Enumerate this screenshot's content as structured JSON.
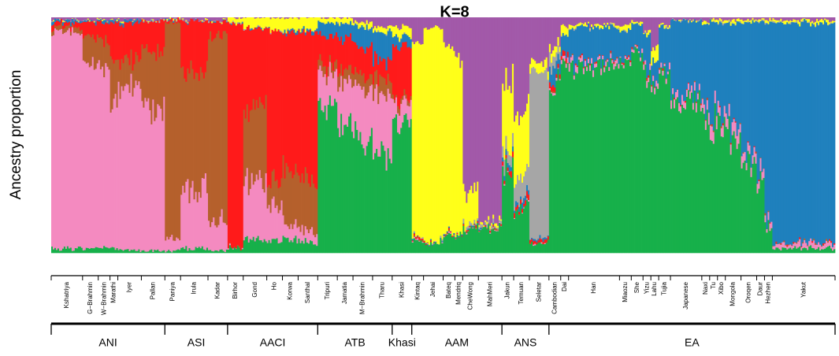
{
  "chart_data": {
    "type": "stacked-bar",
    "title": "K=8",
    "ylabel": "Ancestry proportion",
    "ylim": [
      0,
      1
    ],
    "components": [
      {
        "name": "pink",
        "color": "#f48ac0"
      },
      {
        "name": "brown",
        "color": "#b5602c"
      },
      {
        "name": "red",
        "color": "#ff1a1a"
      },
      {
        "name": "green",
        "color": "#17b04a"
      },
      {
        "name": "blue",
        "color": "#1f80bd"
      },
      {
        "name": "purple",
        "color": "#a259a9"
      },
      {
        "name": "yellow",
        "color": "#ffff19"
      },
      {
        "name": "gray",
        "color": "#a6a6a6"
      }
    ],
    "populations": [
      {
        "name": "Kshatriya",
        "start": 0.0,
        "end": 0.04,
        "profile": [
          0.92,
          0.02,
          0.02,
          0.02,
          0.01,
          0.01,
          0,
          0
        ]
      },
      {
        "name": "G−Brahmin",
        "start": 0.04,
        "end": 0.06,
        "profile": [
          0.78,
          0.12,
          0.06,
          0.02,
          0.01,
          0.01,
          0,
          0
        ]
      },
      {
        "name": "W−Brahmin",
        "start": 0.06,
        "end": 0.075,
        "profile": [
          0.76,
          0.12,
          0.08,
          0.02,
          0.01,
          0.01,
          0,
          0
        ]
      },
      {
        "name": "Marathi",
        "start": 0.075,
        "end": 0.085,
        "profile": [
          0.62,
          0.18,
          0.16,
          0.02,
          0.01,
          0.01,
          0,
          0
        ]
      },
      {
        "name": "Iyer",
        "start": 0.085,
        "end": 0.115,
        "profile": [
          0.7,
          0.12,
          0.15,
          0.01,
          0.01,
          0.01,
          0,
          0
        ]
      },
      {
        "name": "Pallan",
        "start": 0.115,
        "end": 0.145,
        "profile": [
          0.6,
          0.25,
          0.13,
          0.01,
          0,
          0.01,
          0,
          0
        ]
      },
      {
        "name": "Paniya",
        "start": 0.145,
        "end": 0.165,
        "profile": [
          0.05,
          0.93,
          0.01,
          0.01,
          0,
          0,
          0,
          0
        ]
      },
      {
        "name": "Irula",
        "start": 0.165,
        "end": 0.2,
        "profile": [
          0.25,
          0.5,
          0.22,
          0.02,
          0,
          0.01,
          0,
          0
        ]
      },
      {
        "name": "Kadar",
        "start": 0.2,
        "end": 0.225,
        "profile": [
          0.12,
          0.8,
          0.06,
          0.01,
          0,
          0.01,
          0,
          0
        ]
      },
      {
        "name": "Birhor",
        "start": 0.225,
        "end": 0.245,
        "profile": [
          0,
          0,
          0.96,
          0.02,
          0,
          0,
          0.02,
          0
        ]
      },
      {
        "name": "Gond",
        "start": 0.245,
        "end": 0.275,
        "profile": [
          0.25,
          0.3,
          0.35,
          0.06,
          0,
          0,
          0.04,
          0
        ]
      },
      {
        "name": "Ho",
        "start": 0.275,
        "end": 0.295,
        "profile": [
          0.15,
          0.1,
          0.65,
          0.05,
          0,
          0,
          0.05,
          0
        ]
      },
      {
        "name": "Korwa",
        "start": 0.295,
        "end": 0.315,
        "profile": [
          0.06,
          0.25,
          0.57,
          0.06,
          0.01,
          0,
          0.05,
          0
        ]
      },
      {
        "name": "Santhal",
        "start": 0.315,
        "end": 0.34,
        "profile": [
          0.05,
          0.22,
          0.62,
          0.05,
          0.01,
          0,
          0.05,
          0
        ]
      },
      {
        "name": "Tripuri",
        "start": 0.34,
        "end": 0.365,
        "profile": [
          0.14,
          0.04,
          0.12,
          0.62,
          0.06,
          0,
          0.02,
          0
        ]
      },
      {
        "name": "Jamatia",
        "start": 0.365,
        "end": 0.385,
        "profile": [
          0.18,
          0.05,
          0.14,
          0.55,
          0.06,
          0,
          0.02,
          0
        ]
      },
      {
        "name": "M−Brahmin",
        "start": 0.385,
        "end": 0.41,
        "profile": [
          0.22,
          0.06,
          0.12,
          0.48,
          0.08,
          0.02,
          0.02,
          0
        ]
      },
      {
        "name": "Tharu",
        "start": 0.41,
        "end": 0.435,
        "profile": [
          0.25,
          0.07,
          0.08,
          0.42,
          0.12,
          0.04,
          0.02,
          0
        ]
      },
      {
        "name": "Khasi",
        "start": 0.435,
        "end": 0.46,
        "profile": [
          0.08,
          0.02,
          0.22,
          0.56,
          0.04,
          0.04,
          0.04,
          0
        ]
      },
      {
        "name": "Kintaq",
        "start": 0.46,
        "end": 0.475,
        "profile": [
          0,
          0,
          0.01,
          0.05,
          0,
          0.1,
          0.84,
          0
        ]
      },
      {
        "name": "Jehai",
        "start": 0.475,
        "end": 0.5,
        "profile": [
          0,
          0,
          0,
          0.04,
          0,
          0.04,
          0.92,
          0
        ]
      },
      {
        "name": "Bateq",
        "start": 0.5,
        "end": 0.515,
        "profile": [
          0,
          0,
          0,
          0.08,
          0,
          0.12,
          0.8,
          0
        ]
      },
      {
        "name": "Mendriq",
        "start": 0.515,
        "end": 0.525,
        "profile": [
          0,
          0,
          0,
          0.08,
          0,
          0.18,
          0.74,
          0
        ]
      },
      {
        "name": "CheWong",
        "start": 0.525,
        "end": 0.545,
        "profile": [
          0,
          0,
          0,
          0.1,
          0,
          0.75,
          0.14,
          0.01
        ]
      },
      {
        "name": "MahMeri",
        "start": 0.545,
        "end": 0.575,
        "profile": [
          0,
          0,
          0,
          0.1,
          0,
          0.88,
          0.01,
          0.01
        ]
      },
      {
        "name": "Jakun",
        "start": 0.575,
        "end": 0.59,
        "profile": [
          0,
          0,
          0.02,
          0.35,
          0.02,
          0.26,
          0.3,
          0.05
        ]
      },
      {
        "name": "Temuan",
        "start": 0.59,
        "end": 0.61,
        "profile": [
          0,
          0,
          0.02,
          0.2,
          0.02,
          0.4,
          0.26,
          0.1
        ]
      },
      {
        "name": "Seletar",
        "start": 0.61,
        "end": 0.635,
        "profile": [
          0,
          0,
          0.01,
          0.04,
          0.01,
          0.2,
          0.04,
          0.7
        ]
      },
      {
        "name": "Cambodian",
        "start": 0.635,
        "end": 0.65,
        "profile": [
          0.01,
          0,
          0.02,
          0.72,
          0.06,
          0.12,
          0.03,
          0.04
        ]
      },
      {
        "name": "Dai",
        "start": 0.65,
        "end": 0.66,
        "profile": [
          0.02,
          0,
          0.02,
          0.8,
          0.08,
          0.04,
          0.04,
          0
        ]
      },
      {
        "name": "Han",
        "start": 0.66,
        "end": 0.725,
        "profile": [
          0.02,
          0,
          0,
          0.8,
          0.14,
          0.03,
          0.01,
          0
        ]
      },
      {
        "name": "Miaozu",
        "start": 0.725,
        "end": 0.74,
        "profile": [
          0.01,
          0,
          0,
          0.84,
          0.1,
          0.03,
          0.02,
          0
        ]
      },
      {
        "name": "She",
        "start": 0.74,
        "end": 0.755,
        "profile": [
          0.01,
          0,
          0,
          0.86,
          0.1,
          0.02,
          0.01,
          0
        ]
      },
      {
        "name": "Yizu",
        "start": 0.755,
        "end": 0.765,
        "profile": [
          0.02,
          0,
          0,
          0.78,
          0.14,
          0.05,
          0.01,
          0
        ]
      },
      {
        "name": "Lahu",
        "start": 0.765,
        "end": 0.775,
        "profile": [
          0.02,
          0,
          0,
          0.72,
          0.08,
          0.12,
          0.06,
          0
        ]
      },
      {
        "name": "Tujia",
        "start": 0.775,
        "end": 0.79,
        "profile": [
          0.02,
          0,
          0,
          0.76,
          0.18,
          0.03,
          0.01,
          0
        ]
      },
      {
        "name": "Japanese",
        "start": 0.79,
        "end": 0.83,
        "profile": [
          0.03,
          0,
          0,
          0.64,
          0.32,
          0.01,
          0,
          0
        ]
      },
      {
        "name": "Naxi",
        "start": 0.83,
        "end": 0.84,
        "profile": [
          0.04,
          0,
          0,
          0.58,
          0.35,
          0.02,
          0.01,
          0
        ]
      },
      {
        "name": "Tu",
        "start": 0.84,
        "end": 0.85,
        "profile": [
          0.05,
          0,
          0,
          0.55,
          0.38,
          0.01,
          0.01,
          0
        ]
      },
      {
        "name": "Xibo",
        "start": 0.85,
        "end": 0.86,
        "profile": [
          0.05,
          0,
          0,
          0.55,
          0.38,
          0.01,
          0.01,
          0
        ]
      },
      {
        "name": "Mongola",
        "start": 0.86,
        "end": 0.88,
        "profile": [
          0.05,
          0,
          0,
          0.5,
          0.43,
          0.01,
          0.01,
          0
        ]
      },
      {
        "name": "Oroqen",
        "start": 0.88,
        "end": 0.9,
        "profile": [
          0.04,
          0,
          0,
          0.38,
          0.56,
          0.01,
          0.01,
          0
        ]
      },
      {
        "name": "Daur",
        "start": 0.9,
        "end": 0.91,
        "profile": [
          0.04,
          0,
          0,
          0.3,
          0.64,
          0.01,
          0.01,
          0
        ]
      },
      {
        "name": "Hezhen",
        "start": 0.91,
        "end": 0.92,
        "profile": [
          0.03,
          0,
          0,
          0.12,
          0.83,
          0.01,
          0.01,
          0
        ]
      },
      {
        "name": "Yakut",
        "start": 0.92,
        "end": 1.0,
        "profile": [
          0.02,
          0,
          0,
          0.02,
          0.94,
          0.01,
          0.01,
          0
        ]
      }
    ],
    "regions": [
      {
        "name": "ANI",
        "start": 0.0,
        "end": 0.145
      },
      {
        "name": "ASI",
        "start": 0.145,
        "end": 0.225
      },
      {
        "name": "AACI",
        "start": 0.225,
        "end": 0.34
      },
      {
        "name": "ATB",
        "start": 0.34,
        "end": 0.435
      },
      {
        "name": "Khasi",
        "start": 0.435,
        "end": 0.46
      },
      {
        "name": "AAM",
        "start": 0.46,
        "end": 0.575
      },
      {
        "name": "ANS",
        "start": 0.575,
        "end": 0.635
      },
      {
        "name": "EA",
        "start": 0.635,
        "end": 1.0
      }
    ]
  }
}
